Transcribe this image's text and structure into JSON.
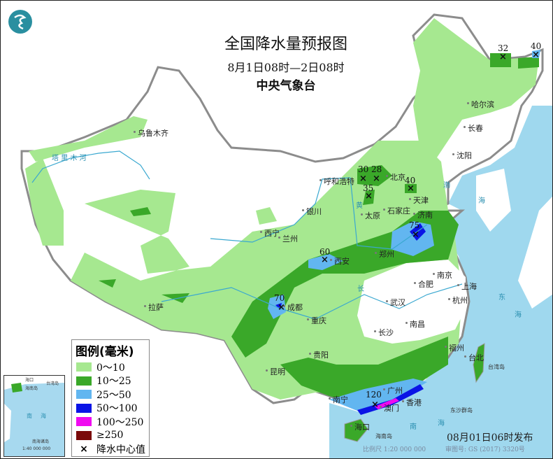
{
  "header": {
    "title": "全国降水量预报图",
    "period": "8月1日08时—2日08时",
    "issuer": "中央气象台",
    "logo": "cma-logo-icon"
  },
  "legend": {
    "title": "图例(毫米)",
    "items": [
      {
        "label": "0～10",
        "color": "#a6e890"
      },
      {
        "label": "10～25",
        "color": "#3aa829"
      },
      {
        "label": "25～50",
        "color": "#62b6f0"
      },
      {
        "label": "50～100",
        "color": "#0a14e6"
      },
      {
        "label": "100～250",
        "color": "#f00af0"
      },
      {
        "label": "≥250",
        "color": "#7a0a0a"
      }
    ],
    "center_label": "降水中心值"
  },
  "cities": [
    "乌鲁木齐",
    "哈尔滨",
    "长春",
    "沈阳",
    "呼和浩特",
    "北京",
    "天津",
    "太原",
    "石家庄",
    "济南",
    "银川",
    "西宁",
    "兰州",
    "西安",
    "郑州",
    "合肥",
    "南京",
    "上海",
    "杭州",
    "武汉",
    "成都",
    "重庆",
    "长沙",
    "南昌",
    "贵阳",
    "昆明",
    "福州",
    "台北",
    "南宁",
    "广州",
    "香港",
    "澳门",
    "海口",
    "拉萨"
  ],
  "geo_labels": {
    "tarim": "塔 里 木 河",
    "yellow_river": "黄",
    "yangtze": "长",
    "bohai": "渤",
    "yellow_sea": "海",
    "east_sea": "东",
    "east_sea2": "海",
    "south_sea": "南",
    "south_sea2": "海",
    "hainan": "海南岛",
    "taiwan": "台湾岛",
    "dongsha": "东沙群岛"
  },
  "rain_centers": [
    30,
    28,
    40,
    35,
    75,
    60,
    70,
    120,
    32,
    40
  ],
  "inset": {
    "labels": [
      "南",
      "海",
      "海口",
      "海南岛",
      "台湾岛",
      "南海诸岛"
    ],
    "scale": "1:40 000 000"
  },
  "footer": {
    "issued": "08月01日06时发布",
    "scale": "比例尺 1:20 000 000",
    "approval": "审图号: GS (2017) 3320号"
  },
  "colors": {
    "sea": "#9fd8ee",
    "border": "#8c8c8c"
  }
}
